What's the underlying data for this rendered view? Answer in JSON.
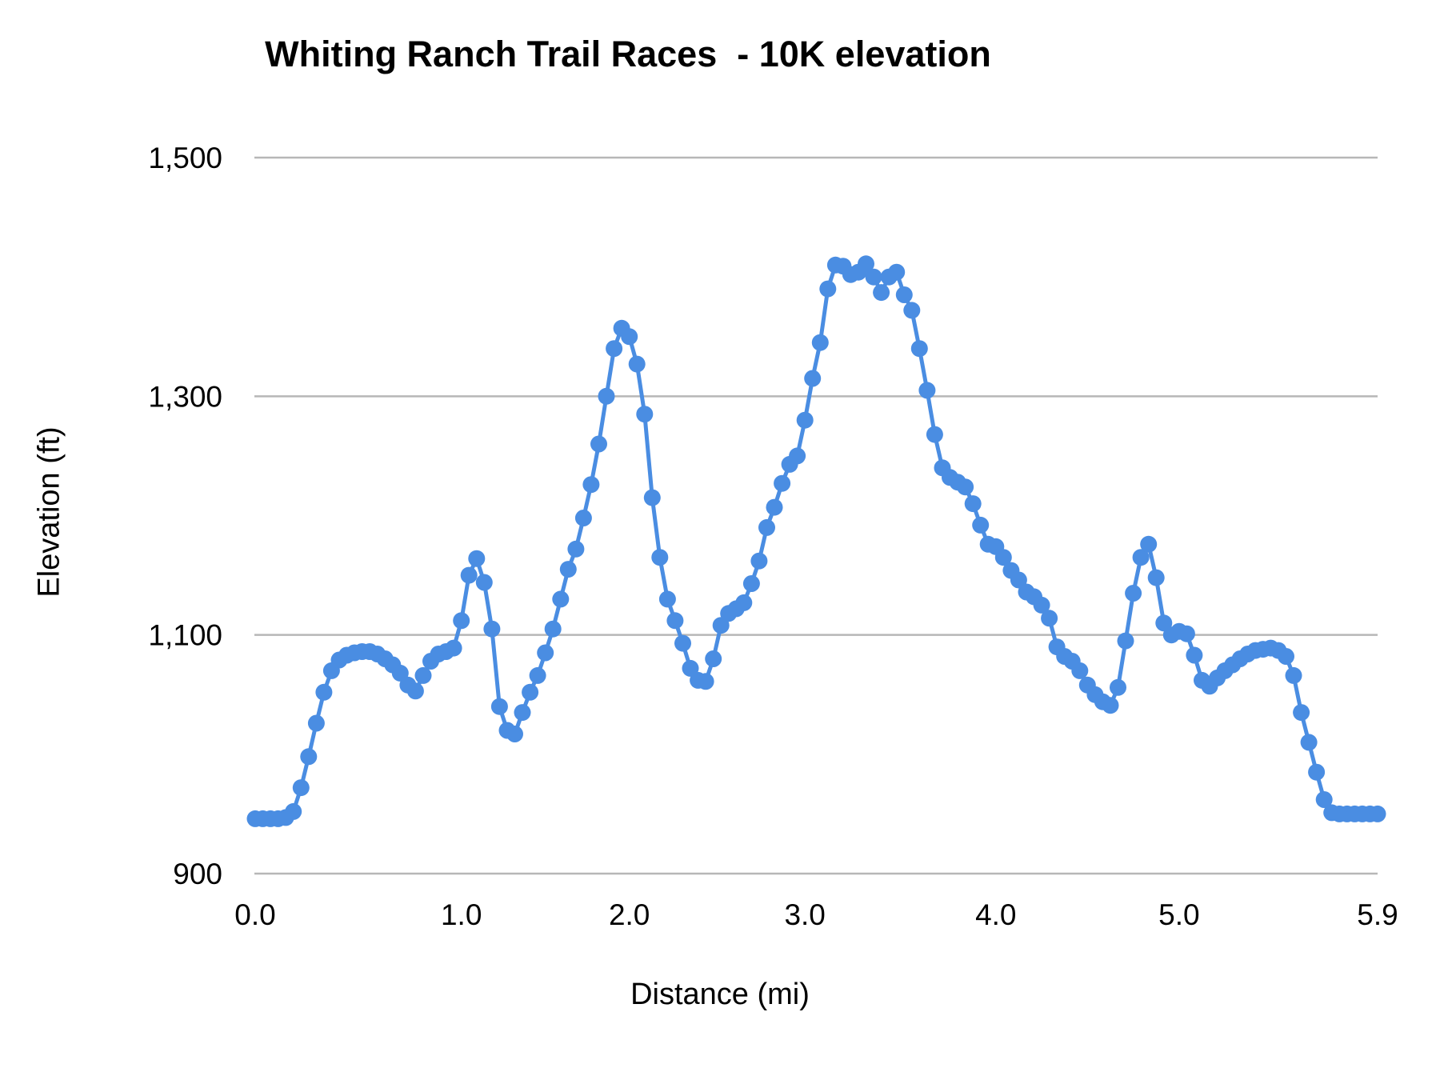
{
  "title": "Whiting Ranch Trail Races  - 10K elevation",
  "chart_data": {
    "type": "line",
    "title": "Whiting Ranch Trail Races  - 10K elevation",
    "xlabel": "Distance (mi)",
    "ylabel": "Elevation (ft)",
    "legend": "none",
    "grid": true,
    "marker": "circle",
    "series_color": "#4a8de2",
    "gridline_color": "#b7b7b7",
    "text_color": "#000000",
    "ylim": [
      900,
      1500
    ],
    "y_ticks": [
      900,
      1100,
      1300,
      1500
    ],
    "y_tick_labels": [
      "900",
      "1,100",
      "1,300",
      "1,500"
    ],
    "x_tick_labels": [
      "0.0",
      "1.0",
      "2.0",
      "3.0",
      "4.0",
      "5.0",
      "5.9"
    ],
    "x_tick_indices": [
      0,
      27,
      49,
      72,
      97,
      121,
      147
    ],
    "mi": [
      0.0,
      0.037,
      0.074,
      0.111,
      0.148,
      0.185,
      0.222,
      0.259,
      0.296,
      0.333,
      0.37,
      0.407,
      0.444,
      0.481,
      0.519,
      0.556,
      0.593,
      0.63,
      0.667,
      0.704,
      0.741,
      0.778,
      0.815,
      0.852,
      0.889,
      0.926,
      0.963,
      1.0,
      1.045,
      1.091,
      1.136,
      1.182,
      1.227,
      1.273,
      1.318,
      1.364,
      1.409,
      1.455,
      1.5,
      1.545,
      1.591,
      1.636,
      1.682,
      1.727,
      1.773,
      1.818,
      1.864,
      1.909,
      1.955,
      2.0,
      2.043,
      2.087,
      2.13,
      2.174,
      2.217,
      2.261,
      2.304,
      2.348,
      2.391,
      2.435,
      2.478,
      2.522,
      2.565,
      2.609,
      2.652,
      2.696,
      2.739,
      2.783,
      2.826,
      2.87,
      2.913,
      2.957,
      3.0,
      3.04,
      3.08,
      3.12,
      3.16,
      3.2,
      3.24,
      3.28,
      3.32,
      3.36,
      3.4,
      3.44,
      3.48,
      3.52,
      3.56,
      3.6,
      3.64,
      3.68,
      3.72,
      3.76,
      3.8,
      3.84,
      3.88,
      3.92,
      3.96,
      4.0,
      4.042,
      4.083,
      4.125,
      4.167,
      4.208,
      4.25,
      4.292,
      4.333,
      4.375,
      4.417,
      4.458,
      4.5,
      4.542,
      4.583,
      4.625,
      4.667,
      4.708,
      4.75,
      4.792,
      4.833,
      4.875,
      4.917,
      4.958,
      5.0,
      5.035,
      5.069,
      5.104,
      5.138,
      5.173,
      5.208,
      5.242,
      5.277,
      5.312,
      5.346,
      5.381,
      5.415,
      5.45,
      5.485,
      5.519,
      5.554,
      5.588,
      5.623,
      5.658,
      5.692,
      5.727,
      5.762,
      5.796,
      5.831,
      5.865,
      5.9
    ],
    "ft": [
      946,
      946,
      946,
      946,
      947,
      952,
      972,
      998,
      1026,
      1052,
      1070,
      1079,
      1083,
      1085,
      1086,
      1086,
      1084,
      1080,
      1075,
      1068,
      1058,
      1053,
      1066,
      1078,
      1084,
      1086,
      1089,
      1112,
      1150,
      1164,
      1144,
      1105,
      1040,
      1020,
      1017,
      1035,
      1052,
      1066,
      1085,
      1105,
      1130,
      1155,
      1172,
      1198,
      1226,
      1260,
      1300,
      1340,
      1357,
      1350,
      1327,
      1285,
      1215,
      1165,
      1130,
      1112,
      1093,
      1072,
      1062,
      1061,
      1080,
      1108,
      1118,
      1122,
      1127,
      1143,
      1162,
      1190,
      1207,
      1227,
      1243,
      1250,
      1280,
      1315,
      1345,
      1390,
      1410,
      1409,
      1402,
      1404,
      1411,
      1400,
      1387,
      1400,
      1404,
      1385,
      1372,
      1340,
      1305,
      1268,
      1240,
      1232,
      1228,
      1224,
      1210,
      1192,
      1176,
      1174,
      1165,
      1154,
      1146,
      1136,
      1132,
      1125,
      1114,
      1090,
      1082,
      1078,
      1070,
      1058,
      1050,
      1044,
      1041,
      1056,
      1095,
      1135,
      1165,
      1176,
      1148,
      1110,
      1100,
      1103,
      1101,
      1083,
      1062,
      1057,
      1064,
      1070,
      1075,
      1080,
      1084,
      1087,
      1088,
      1089,
      1087,
      1082,
      1066,
      1035,
      1010,
      985,
      962,
      951,
      950,
      950,
      950,
      950,
      950,
      950
    ]
  }
}
